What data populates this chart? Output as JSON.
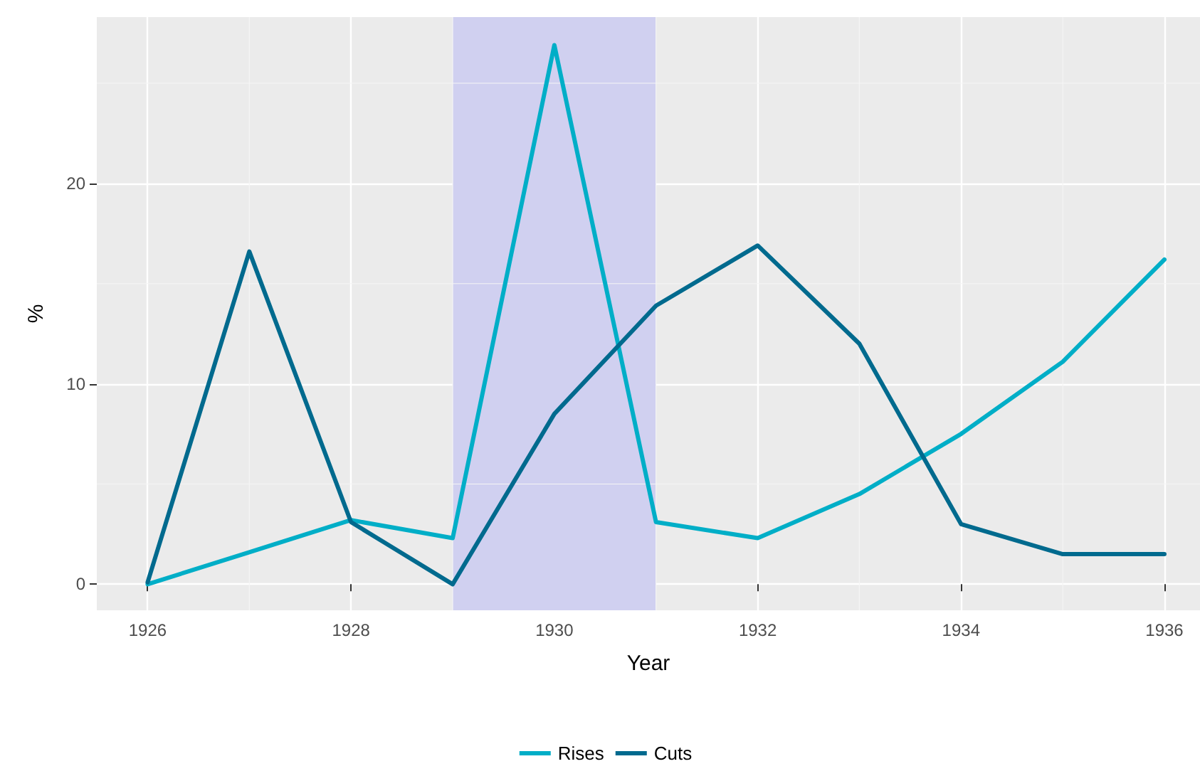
{
  "chart_data": {
    "type": "line",
    "xlabel": "Year",
    "ylabel": "%",
    "x": [
      1926,
      1927,
      1928,
      1929,
      1930,
      1931,
      1932,
      1933,
      1934,
      1935,
      1936
    ],
    "series": [
      {
        "name": "Rises",
        "color": "#00aec7",
        "values": [
          0,
          1.6,
          3.2,
          2.3,
          26.9,
          3.1,
          2.3,
          4.5,
          7.5,
          11.1,
          16.2
        ]
      },
      {
        "name": "Cuts",
        "color": "#006a8e",
        "values": [
          0.1,
          16.6,
          3.1,
          0,
          8.5,
          13.9,
          16.9,
          12,
          3,
          1.5,
          1.5
        ]
      }
    ],
    "xlim": [
      1925.5,
      1936.35
    ],
    "xticks": [
      1926,
      1928,
      1930,
      1932,
      1934,
      1936
    ],
    "ylim": [
      -1.3,
      28.3
    ],
    "yticks": [
      0,
      10,
      20
    ],
    "bands": [
      {
        "axis": "x",
        "from": 1929,
        "to": 1931,
        "color": "#d0d0f0"
      }
    ],
    "grid": true,
    "legend": "bottom",
    "marker": "none",
    "line_style": "solid"
  }
}
